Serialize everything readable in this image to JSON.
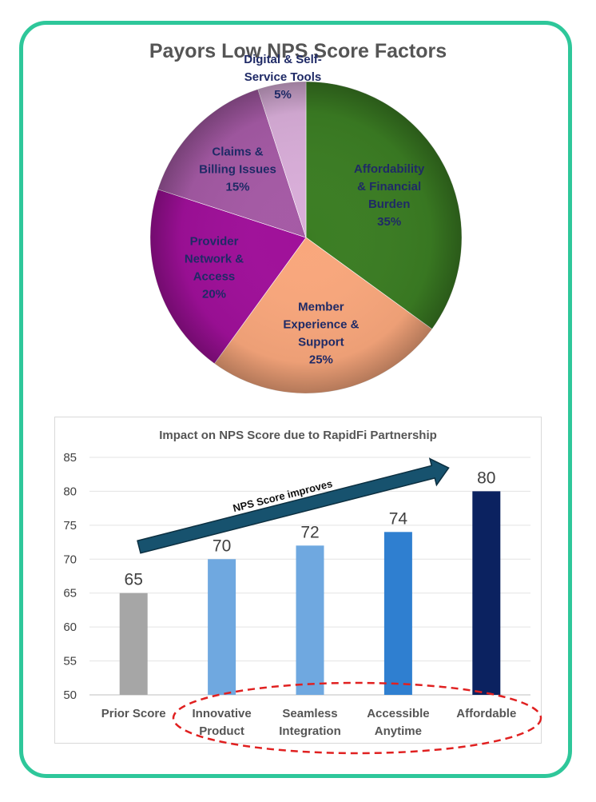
{
  "pie": {
    "title": "Payors Low NPS Score Factors"
  },
  "bar": {
    "title": "Impact on NPS Score due to RapidFi Partnership",
    "arrow_label": "NPS Score improves"
  },
  "colors": {
    "frame": "#2ec79a",
    "annotation_ellipse": "#e02020",
    "arrow": "#17526e"
  },
  "chart_data": [
    {
      "type": "pie",
      "title": "Payors Low NPS Score Factors",
      "slices": [
        {
          "label": [
            "Affordability",
            "& Financial",
            "Burden"
          ],
          "value": 35,
          "pct_label": "35%",
          "color": "#3b7d23"
        },
        {
          "label": [
            "Member",
            "Experience &",
            "Support"
          ],
          "value": 25,
          "pct_label": "25%",
          "color": "#f9a77c"
        },
        {
          "label": [
            "Provider",
            "Network &",
            "Access"
          ],
          "value": 20,
          "pct_label": "20%",
          "color": "#a0109a"
        },
        {
          "label": [
            "Claims &",
            "Billing Issues"
          ],
          "value": 15,
          "pct_label": "15%",
          "color": "#a55aa5"
        },
        {
          "label": [
            "Digital & Self-",
            "Service Tools"
          ],
          "value": 5,
          "pct_label": "5%",
          "color": "#d9aed9"
        }
      ]
    },
    {
      "type": "bar",
      "title": "Impact on NPS Score due to RapidFi Partnership",
      "categories": [
        [
          "Prior Score"
        ],
        [
          "Innovative",
          "Product"
        ],
        [
          "Seamless",
          "Integration"
        ],
        [
          "Accessible",
          "Anytime"
        ],
        [
          "Affordable"
        ]
      ],
      "values": [
        65,
        70,
        72,
        74,
        80
      ],
      "bar_colors": [
        "#a6a6a6",
        "#6fa8e0",
        "#6fa8e0",
        "#2f7fd0",
        "#0b2260"
      ],
      "ylim": [
        50,
        85
      ],
      "yticks": [
        50,
        55,
        60,
        65,
        70,
        75,
        80,
        85
      ],
      "grid": true,
      "data_labels": true,
      "annotation": "NPS Score improves"
    }
  ]
}
